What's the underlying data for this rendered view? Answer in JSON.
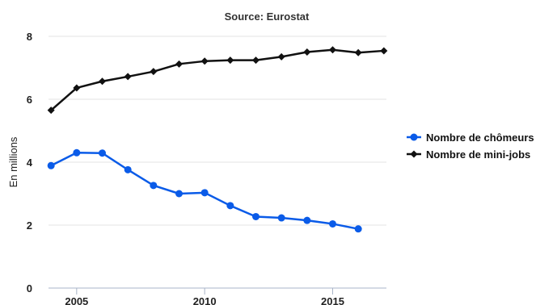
{
  "chart_data": {
    "type": "line",
    "subtitle": "Source: Eurostat",
    "ylabel": "En millions",
    "xlabel": "",
    "x": [
      2004,
      2005,
      2006,
      2007,
      2008,
      2009,
      2010,
      2011,
      2012,
      2013,
      2014,
      2015,
      2016,
      2017
    ],
    "xticks": [
      2005,
      2010,
      2015
    ],
    "xticks_text": [
      "2005",
      "2010",
      "2015"
    ],
    "xlim": [
      2003.9,
      2017.1
    ],
    "yticks": [
      0,
      2,
      4,
      6,
      8
    ],
    "yticks_text": [
      "0",
      "2",
      "4",
      "6",
      "8"
    ],
    "ylim": [
      0,
      8
    ],
    "grid": true,
    "legend_position": "right",
    "series": [
      {
        "name": "Nombre de chômeurs",
        "color": "#0a5be8",
        "marker": "circle",
        "values": [
          3.89,
          4.3,
          4.29,
          3.76,
          3.26,
          3.0,
          3.03,
          2.62,
          2.27,
          2.23,
          2.15,
          2.04,
          1.88,
          null
        ]
      },
      {
        "name": "Nombre de mini-jobs",
        "color": "#111111",
        "marker": "diamond",
        "values": [
          5.65,
          6.36,
          6.57,
          6.72,
          6.88,
          7.12,
          7.21,
          7.24,
          7.24,
          7.35,
          7.5,
          7.57,
          7.48,
          7.54
        ]
      }
    ]
  }
}
